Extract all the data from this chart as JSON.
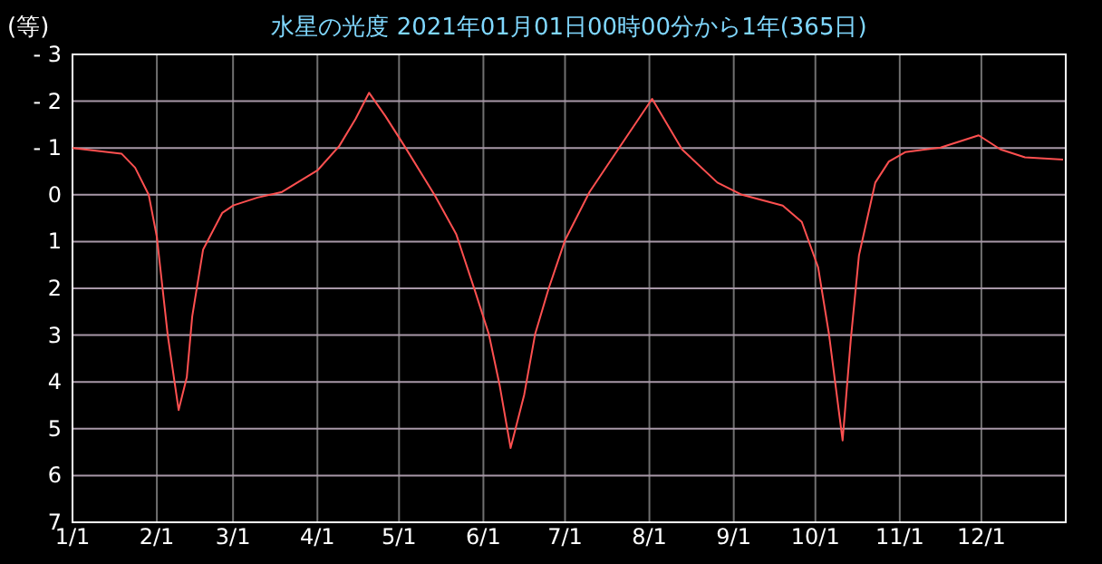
{
  "chart_data": {
    "type": "line",
    "title": "水星の光度 2021年01月01日00時00分から1年(365日)",
    "ylabel": "(等)",
    "xlim": [
      "2021-01-01",
      "2022-01-01"
    ],
    "ylim": [
      7,
      -3
    ],
    "xticks": [
      {
        "value": "2021-01-01",
        "label": "1/1"
      },
      {
        "value": "2021-02-01",
        "label": "2/1"
      },
      {
        "value": "2021-03-01",
        "label": "3/1"
      },
      {
        "value": "2021-04-01",
        "label": "4/1"
      },
      {
        "value": "2021-05-01",
        "label": "5/1"
      },
      {
        "value": "2021-06-01",
        "label": "6/1"
      },
      {
        "value": "2021-07-01",
        "label": "7/1"
      },
      {
        "value": "2021-08-01",
        "label": "8/1"
      },
      {
        "value": "2021-09-01",
        "label": "9/1"
      },
      {
        "value": "2021-10-01",
        "label": "10/1"
      },
      {
        "value": "2021-11-01",
        "label": "11/1"
      },
      {
        "value": "2021-12-01",
        "label": "12/1"
      }
    ],
    "yticks": [
      {
        "value": -3,
        "label": "- 3"
      },
      {
        "value": -2,
        "label": "- 2"
      },
      {
        "value": -1,
        "label": "- 1"
      },
      0,
      1,
      2,
      3,
      4,
      5,
      6,
      7
    ],
    "grid": true,
    "series": [
      {
        "color": "#ff5050",
        "x": [
          "2021-01-01",
          "2021-01-19",
          "2021-01-24",
          "2021-01-29",
          "2021-02-01",
          "2021-02-05",
          "2021-02-09",
          "2021-02-12",
          "2021-02-14",
          "2021-02-18",
          "2021-02-25",
          "2021-03-01",
          "2021-03-10",
          "2021-03-19",
          "2021-04-01",
          "2021-04-09",
          "2021-04-15",
          "2021-04-20",
          "2021-04-26",
          "2021-05-03",
          "2021-05-14",
          "2021-05-22",
          "2021-05-29",
          "2021-06-03",
          "2021-06-07",
          "2021-06-11",
          "2021-06-16",
          "2021-06-20",
          "2021-06-25",
          "2021-07-01",
          "2021-07-10",
          "2021-07-22",
          "2021-08-02",
          "2021-08-13",
          "2021-08-26",
          "2021-09-04",
          "2021-09-19",
          "2021-09-26",
          "2021-10-02",
          "2021-10-06",
          "2021-10-11",
          "2021-10-14",
          "2021-10-17",
          "2021-10-23",
          "2021-10-28",
          "2021-11-03",
          "2021-11-16",
          "2021-11-30",
          "2021-12-08",
          "2021-12-17",
          "2021-12-31"
        ],
        "values": [
          -1.0,
          -0.88,
          -0.58,
          0,
          0.9,
          3.0,
          4.6,
          3.9,
          2.6,
          1.17,
          0.39,
          0.23,
          0.06,
          -0.06,
          -0.52,
          -1.04,
          -1.62,
          -2.18,
          -1.68,
          -1.04,
          0,
          0.84,
          2.07,
          2.98,
          4.08,
          5.41,
          4.27,
          2.98,
          2.0,
          0.97,
          -0.06,
          -1.1,
          -2.05,
          -0.97,
          -0.26,
          0,
          0.23,
          0.58,
          1.55,
          2.98,
          5.25,
          3.1,
          1.3,
          -0.26,
          -0.71,
          -0.91,
          -1.01,
          -1.27,
          -0.97,
          -0.8,
          -0.75
        ]
      }
    ]
  }
}
